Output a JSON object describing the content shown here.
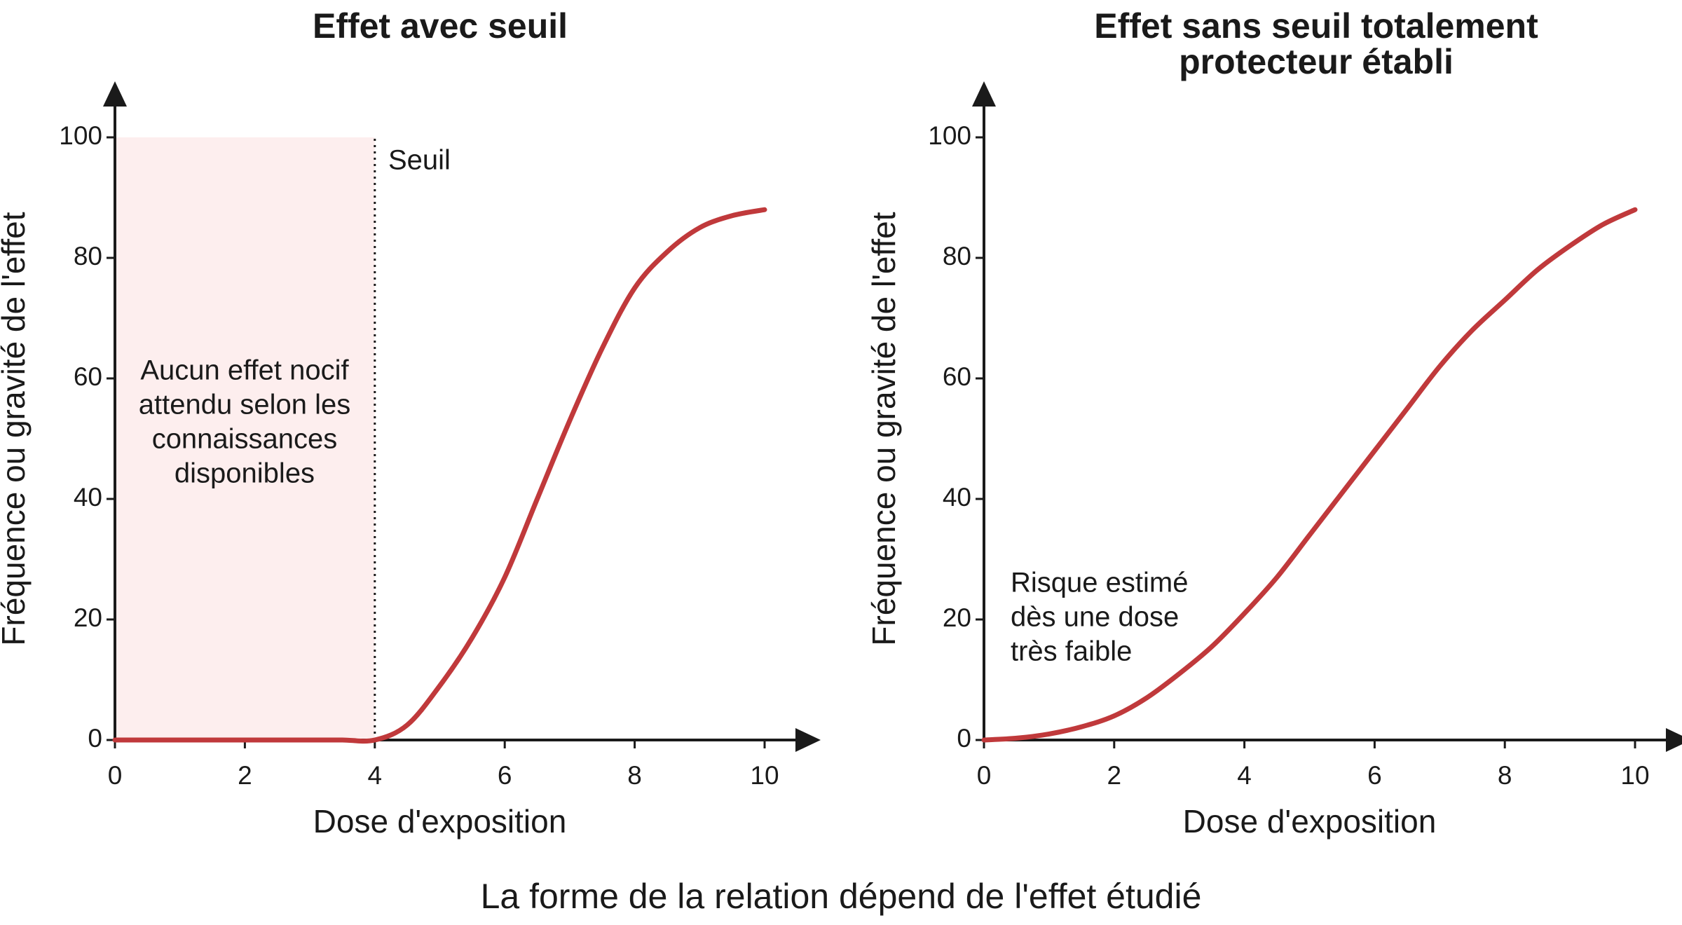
{
  "chart_data": [
    {
      "type": "line",
      "title": [
        "Effet avec seuil"
      ],
      "x": [
        0,
        0.5,
        1,
        1.5,
        2,
        2.5,
        3,
        3.5,
        4,
        4.5,
        5,
        5.5,
        6,
        6.5,
        7,
        7.5,
        8,
        8.5,
        9,
        9.5,
        10
      ],
      "series": [
        {
          "color": "#c0393b",
          "values": [
            0,
            0,
            0,
            0,
            0,
            0,
            0,
            0,
            0,
            2.5,
            9,
            17,
            27,
            40,
            53,
            65,
            75,
            81,
            85,
            87,
            88
          ]
        }
      ],
      "xlabel": "Dose d'exposition",
      "ylabel": "Fréquence ou gravité de l'effet",
      "xlim": [
        0,
        10
      ],
      "ylim": [
        0,
        100
      ],
      "xticks": [
        0,
        2,
        4,
        6,
        8,
        10
      ],
      "yticks": [
        0,
        20,
        40,
        60,
        80,
        100
      ],
      "threshold": 4,
      "threshold_label": "Seuil",
      "shade_color": "#fdeeee",
      "annotation": [
        "Aucun effet nocif",
        "attendu selon les",
        "connaissances",
        "disponibles"
      ]
    },
    {
      "type": "line",
      "title": [
        "Effet sans seuil totalement",
        "protecteur établi"
      ],
      "x": [
        0,
        0.5,
        1,
        1.5,
        2,
        2.5,
        3,
        3.5,
        4,
        4.5,
        5,
        5.5,
        6,
        6.5,
        7,
        7.5,
        8,
        8.5,
        9,
        9.5,
        10
      ],
      "series": [
        {
          "color": "#c0393b",
          "values": [
            0,
            0.3,
            1,
            2.2,
            4,
            7,
            11,
            15.5,
            21,
            27,
            34,
            41,
            48,
            55,
            62,
            68,
            73,
            78,
            82,
            85.5,
            88
          ]
        }
      ],
      "xlabel": "Dose d'exposition",
      "ylabel": "Fréquence ou gravité de l'effet",
      "xlim": [
        0,
        10
      ],
      "ylim": [
        0,
        100
      ],
      "xticks": [
        0,
        2,
        4,
        6,
        8,
        10
      ],
      "yticks": [
        0,
        20,
        40,
        60,
        80,
        100
      ],
      "annotation": [
        "Risque estimé",
        "dès une dose",
        "très faible"
      ]
    }
  ],
  "caption": "La forme de la relation dépend de l'effet étudié"
}
